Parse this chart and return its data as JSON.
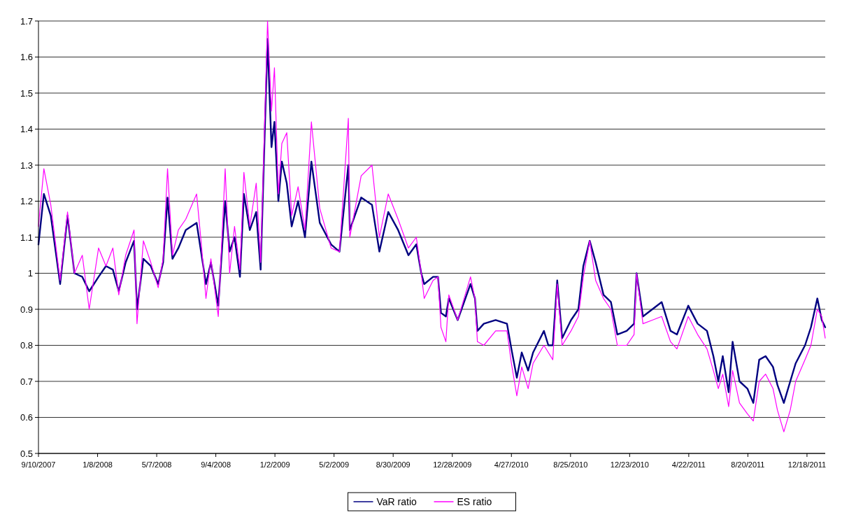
{
  "chart_data": {
    "type": "line",
    "grid": "y",
    "legend": "bottom",
    "xlim": [
      "2007-09-10",
      "2012-01-24"
    ],
    "xticks": [
      {
        "value": "2007-09-10",
        "label": "9/10/2007"
      },
      {
        "value": "2008-01-08",
        "label": "1/8/2008"
      },
      {
        "value": "2008-05-07",
        "label": "5/7/2008"
      },
      {
        "value": "2008-09-04",
        "label": "9/4/2008"
      },
      {
        "value": "2009-01-02",
        "label": "1/2/2009"
      },
      {
        "value": "2009-05-02",
        "label": "5/2/2009"
      },
      {
        "value": "2009-08-30",
        "label": "8/30/2009"
      },
      {
        "value": "2009-12-28",
        "label": "12/28/2009"
      },
      {
        "value": "2010-04-27",
        "label": "4/27/2010"
      },
      {
        "value": "2010-08-25",
        "label": "8/25/2010"
      },
      {
        "value": "2010-12-23",
        "label": "12/23/2010"
      },
      {
        "value": "2011-04-22",
        "label": "4/22/2011"
      },
      {
        "value": "2011-08-20",
        "label": "8/20/2011"
      },
      {
        "value": "2011-12-18",
        "label": "12/18/2011"
      }
    ],
    "ylim": [
      0.5,
      1.7
    ],
    "yticks": [
      0.5,
      0.6,
      0.7,
      0.8,
      0.9,
      1,
      1.1,
      1.2,
      1.3,
      1.4,
      1.5,
      1.6,
      1.7
    ],
    "x": [
      "2007-09-10",
      "2007-09-21",
      "2007-10-05",
      "2007-10-24",
      "2007-11-08",
      "2007-11-22",
      "2007-12-08",
      "2007-12-22",
      "2008-01-10",
      "2008-01-25",
      "2008-02-08",
      "2008-02-20",
      "2008-03-05",
      "2008-03-22",
      "2008-03-28",
      "2008-04-10",
      "2008-04-25",
      "2008-05-10",
      "2008-05-20",
      "2008-05-29",
      "2008-06-08",
      "2008-06-20",
      "2008-07-05",
      "2008-07-27",
      "2008-08-05",
      "2008-08-15",
      "2008-08-25",
      "2008-09-09",
      "2008-09-23",
      "2008-10-02",
      "2008-10-12",
      "2008-10-23",
      "2008-10-31",
      "2008-11-12",
      "2008-11-25",
      "2008-12-04",
      "2008-12-18",
      "2008-12-26",
      "2009-01-01",
      "2009-01-09",
      "2009-01-16",
      "2009-01-26",
      "2009-02-05",
      "2009-02-18",
      "2009-03-04",
      "2009-03-17",
      "2009-04-03",
      "2009-04-26",
      "2009-05-13",
      "2009-05-31",
      "2009-06-03",
      "2009-06-26",
      "2009-07-18",
      "2009-08-02",
      "2009-08-20",
      "2009-09-09",
      "2009-09-30",
      "2009-10-16",
      "2009-10-26",
      "2009-11-01",
      "2009-11-19",
      "2009-11-29",
      "2009-12-05",
      "2009-12-15",
      "2009-12-21",
      "2010-01-08",
      "2010-02-03",
      "2010-02-12",
      "2010-02-17",
      "2010-03-02",
      "2010-03-26",
      "2010-04-18",
      "2010-04-27",
      "2010-05-08",
      "2010-05-18",
      "2010-05-31",
      "2010-06-10",
      "2010-07-02",
      "2010-07-11",
      "2010-07-20",
      "2010-07-29",
      "2010-08-08",
      "2010-08-26",
      "2010-09-10",
      "2010-09-20",
      "2010-10-03",
      "2010-10-15",
      "2010-10-31",
      "2010-11-15",
      "2010-11-28",
      "2010-12-17",
      "2011-01-01",
      "2011-01-06",
      "2011-01-19",
      "2011-02-07",
      "2011-02-26",
      "2011-03-16",
      "2011-03-29",
      "2011-04-21",
      "2011-05-10",
      "2011-05-29",
      "2011-06-11",
      "2011-06-21",
      "2011-06-30",
      "2011-07-12",
      "2011-07-20",
      "2011-08-03",
      "2011-08-19",
      "2011-08-31",
      "2011-09-12",
      "2011-09-25",
      "2011-10-10",
      "2011-10-19",
      "2011-11-01",
      "2011-11-14",
      "2011-11-25",
      "2011-12-14",
      "2011-12-26",
      "2012-01-08",
      "2012-01-17",
      "2012-01-24"
    ],
    "series": [
      {
        "name": "VaR ratio",
        "color": "#000080",
        "values": [
          1.08,
          1.22,
          1.16,
          0.97,
          1.16,
          1.0,
          0.99,
          0.95,
          0.99,
          1.02,
          1.01,
          0.95,
          1.03,
          1.09,
          0.9,
          1.04,
          1.02,
          0.97,
          1.03,
          1.21,
          1.04,
          1.07,
          1.12,
          1.14,
          1.06,
          0.97,
          1.03,
          0.91,
          1.2,
          1.06,
          1.1,
          0.99,
          1.22,
          1.12,
          1.17,
          1.01,
          1.65,
          1.35,
          1.42,
          1.2,
          1.31,
          1.25,
          1.13,
          1.2,
          1.1,
          1.31,
          1.14,
          1.08,
          1.06,
          1.3,
          1.12,
          1.21,
          1.19,
          1.06,
          1.17,
          1.12,
          1.05,
          1.08,
          1.0,
          0.97,
          0.99,
          0.99,
          0.89,
          0.88,
          0.93,
          0.87,
          0.97,
          0.93,
          0.84,
          0.86,
          0.87,
          0.86,
          0.79,
          0.71,
          0.78,
          0.73,
          0.78,
          0.84,
          0.8,
          0.8,
          0.98,
          0.82,
          0.87,
          0.9,
          1.02,
          1.09,
          1.03,
          0.94,
          0.92,
          0.83,
          0.84,
          0.86,
          1.0,
          0.88,
          0.9,
          0.92,
          0.84,
          0.83,
          0.91,
          0.86,
          0.84,
          0.77,
          0.7,
          0.77,
          0.67,
          0.81,
          0.7,
          0.68,
          0.64,
          0.76,
          0.77,
          0.74,
          0.69,
          0.64,
          0.7,
          0.75,
          0.8,
          0.85,
          0.93,
          0.87,
          0.85
        ]
      },
      {
        "name": "ES ratio",
        "color": "#ff00ff",
        "values": [
          1.13,
          1.29,
          1.19,
          0.98,
          1.17,
          1.0,
          1.05,
          0.9,
          1.07,
          1.02,
          1.07,
          0.94,
          1.05,
          1.12,
          0.86,
          1.09,
          1.03,
          0.96,
          1.04,
          1.29,
          1.05,
          1.12,
          1.15,
          1.22,
          1.09,
          0.93,
          1.04,
          0.88,
          1.29,
          1.0,
          1.13,
          1.01,
          1.28,
          1.13,
          1.25,
          1.03,
          1.7,
          1.45,
          1.57,
          1.22,
          1.36,
          1.39,
          1.16,
          1.24,
          1.12,
          1.42,
          1.18,
          1.07,
          1.06,
          1.43,
          1.1,
          1.27,
          1.3,
          1.1,
          1.22,
          1.15,
          1.07,
          1.1,
          1.0,
          0.93,
          0.98,
          0.99,
          0.85,
          0.81,
          0.94,
          0.87,
          0.99,
          0.93,
          0.81,
          0.8,
          0.84,
          0.84,
          0.75,
          0.66,
          0.74,
          0.68,
          0.75,
          0.8,
          0.78,
          0.76,
          0.97,
          0.8,
          0.84,
          0.88,
          0.99,
          1.09,
          0.98,
          0.93,
          0.9,
          0.8,
          0.8,
          0.83,
          1.0,
          0.86,
          0.87,
          0.88,
          0.81,
          0.79,
          0.88,
          0.83,
          0.79,
          0.73,
          0.68,
          0.72,
          0.63,
          0.73,
          0.64,
          0.61,
          0.59,
          0.7,
          0.72,
          0.68,
          0.62,
          0.56,
          0.62,
          0.7,
          0.76,
          0.8,
          0.9,
          0.88,
          0.82
        ]
      }
    ]
  }
}
